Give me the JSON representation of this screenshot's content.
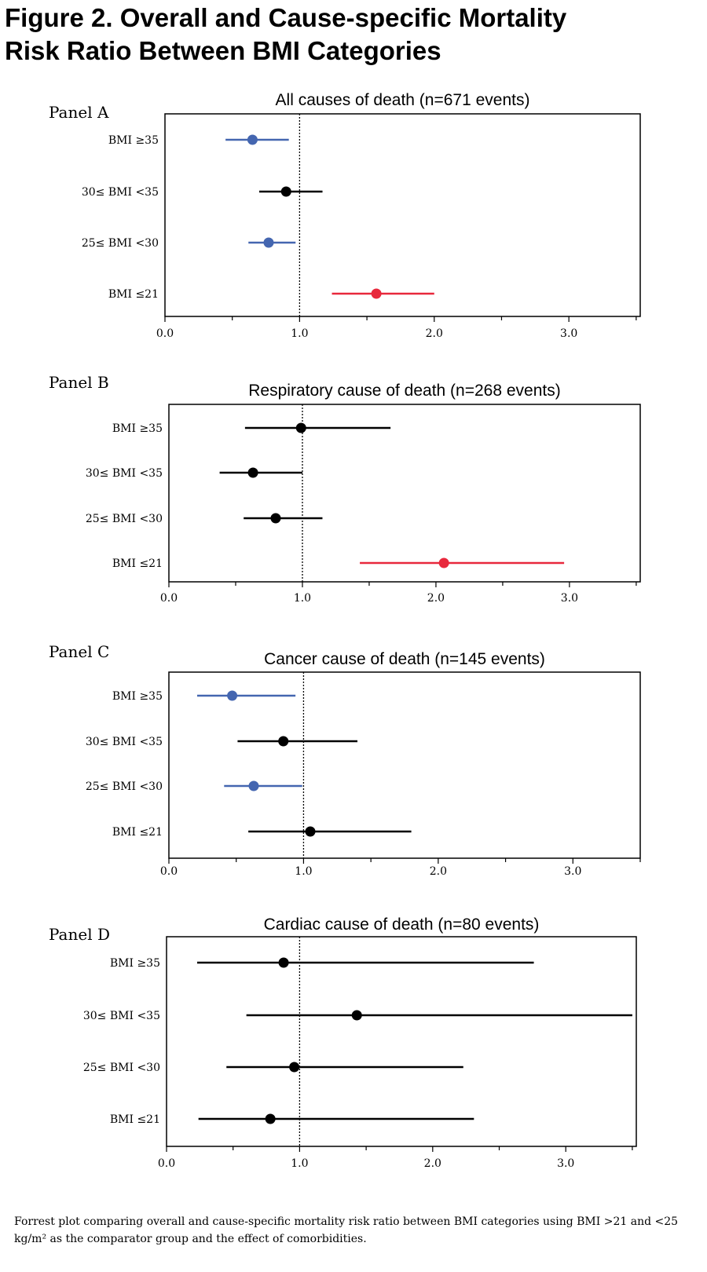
{
  "figure": {
    "title_line1": "Figure 2. Overall and Cause-specific Mortality",
    "title_line2": "Risk Ratio Between BMI Categories",
    "caption": "Forrest plot comparing overall and cause-specific mortality risk ratio between BMI categories using BMI >21 and <25 kg/m² as the comparator group and the effect of comorbidities."
  },
  "colors": {
    "significant_lower": "#4466b0",
    "significant_higher": "#e8283c",
    "not_significant": "#000000"
  },
  "chart_data": [
    {
      "type": "forest",
      "panel": "Panel A",
      "title": "All causes of death (n=671 events)",
      "categories": [
        "BMI ≥35",
        "30≤ BMI <35",
        "25≤ BMI <30",
        "BMI ≤21"
      ],
      "estimates": [
        0.65,
        0.9,
        0.77,
        1.57
      ],
      "ci_lower": [
        0.45,
        0.7,
        0.62,
        1.24
      ],
      "ci_upper": [
        0.92,
        1.17,
        0.97,
        2.0
      ],
      "marker_colors": [
        "#4466b0",
        "#000000",
        "#4466b0",
        "#e8283c"
      ],
      "reference_line": 1.0,
      "xlim": [
        0.0,
        3.53
      ],
      "x_ticks": [
        0.0,
        1.0,
        2.0,
        3.0
      ],
      "x_tick_labels": [
        "0.0",
        "1.0",
        "2.0",
        "3.0"
      ],
      "grid": false
    },
    {
      "type": "forest",
      "panel": "Panel B",
      "title": "Respiratory cause of death (n=268 events)",
      "categories": [
        "BMI ≥35",
        "30≤ BMI <35",
        "25≤ BMI <30",
        "BMI ≤21"
      ],
      "estimates": [
        0.99,
        0.63,
        0.8,
        2.06
      ],
      "ci_lower": [
        0.57,
        0.38,
        0.56,
        1.43
      ],
      "ci_upper": [
        1.66,
        1.0,
        1.15,
        2.96
      ],
      "marker_colors": [
        "#000000",
        "#000000",
        "#000000",
        "#e8283c"
      ],
      "reference_line": 1.0,
      "xlim": [
        0.0,
        3.53
      ],
      "x_ticks": [
        0.0,
        1.0,
        2.0,
        3.0
      ],
      "x_tick_labels": [
        "0.0",
        "1.0",
        "2.0",
        "3.0"
      ],
      "grid": false
    },
    {
      "type": "forest",
      "panel": "Panel C",
      "title": "Cancer cause of death (n=145 events)",
      "categories": [
        "BMI ≥35",
        "30≤ BMI <35",
        "25≤ BMI <30",
        "BMI ≤21"
      ],
      "estimates": [
        0.47,
        0.85,
        0.63,
        1.05
      ],
      "ci_lower": [
        0.21,
        0.51,
        0.41,
        0.59
      ],
      "ci_upper": [
        0.94,
        1.4,
        0.99,
        1.8
      ],
      "marker_colors": [
        "#4466b0",
        "#000000",
        "#4466b0",
        "#000000"
      ],
      "reference_line": 1.0,
      "xlim": [
        0.0,
        3.5
      ],
      "x_ticks": [
        0.0,
        1.0,
        2.0,
        3.0
      ],
      "x_tick_labels": [
        "0.0",
        "1.0",
        "2.0",
        "3.0"
      ],
      "grid": false
    },
    {
      "type": "forest",
      "panel": "Panel D",
      "title": "Cardiac cause of death (n=80 events)",
      "categories": [
        "BMI ≥35",
        "30≤ BMI <35",
        "25≤ BMI <30",
        "BMI ≤21"
      ],
      "estimates": [
        0.88,
        1.43,
        0.96,
        0.78
      ],
      "ci_lower": [
        0.23,
        0.6,
        0.45,
        0.24
      ],
      "ci_upper": [
        2.76,
        3.5,
        2.23,
        2.31
      ],
      "marker_colors": [
        "#000000",
        "#000000",
        "#000000",
        "#000000"
      ],
      "reference_line": 1.0,
      "xlim": [
        0.0,
        3.53
      ],
      "x_ticks": [
        0.0,
        1.0,
        2.0,
        3.0
      ],
      "x_tick_labels": [
        "0.0",
        "1.0",
        "2.0",
        "3.0"
      ],
      "grid": false
    }
  ]
}
